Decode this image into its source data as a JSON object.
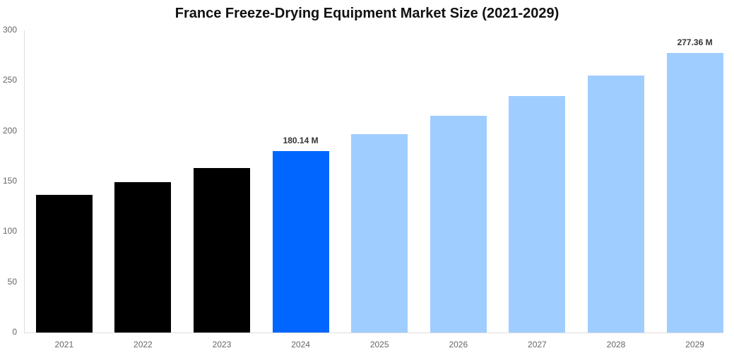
{
  "chart_data": {
    "type": "bar",
    "title": "France Freeze-Drying Equipment Market Size (2021-2029)",
    "xlabel": "",
    "ylabel": "",
    "ylim": [
      0,
      300
    ],
    "yticks": [
      0,
      50,
      100,
      150,
      200,
      250,
      300
    ],
    "grid": false,
    "legend": null,
    "categories": [
      "2021",
      "2022",
      "2023",
      "2024",
      "2025",
      "2026",
      "2027",
      "2028",
      "2029"
    ],
    "values": [
      136.7,
      149.3,
      163.3,
      180.14,
      197.0,
      215.0,
      234.8,
      255.0,
      277.36
    ],
    "bar_colors": [
      "#000000",
      "#000000",
      "#000000",
      "#0066ff",
      "#a0cdff",
      "#a0cdff",
      "#a0cdff",
      "#a0cdff",
      "#a0cdff"
    ],
    "data_labels": [
      {
        "category": "2024",
        "text": "180.14 M"
      },
      {
        "category": "2029",
        "text": "277.36 M"
      }
    ]
  }
}
